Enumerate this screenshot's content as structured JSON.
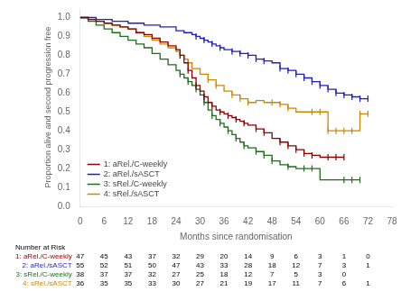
{
  "chart_data": {
    "type": "line",
    "xlabel": "Months since randomisation",
    "ylabel": "Proportion alive and second progression free",
    "xlim": [
      0,
      78
    ],
    "ylim": [
      0.0,
      1.05
    ],
    "xticks": [
      0,
      6,
      12,
      18,
      24,
      30,
      36,
      42,
      48,
      54,
      60,
      66,
      72,
      78
    ],
    "yticks": [
      {
        "value": 0.0,
        "label": "0.0"
      },
      0.1,
      0.2,
      0.3,
      0.4,
      0.5,
      0.6,
      0.7,
      0.8,
      0.9,
      {
        "value": 1.0,
        "label": "1.0"
      }
    ],
    "grid": false,
    "legend": "lower left",
    "series": [
      {
        "name": "1: aRel./C-weekly",
        "color": "#8B0000",
        "x": [
          0,
          2,
          4,
          6,
          8,
          10,
          12,
          14,
          16,
          18,
          20,
          22,
          24,
          25,
          26,
          27,
          28,
          29,
          30,
          31,
          32,
          33,
          34,
          35,
          36,
          37,
          38,
          39,
          40,
          41,
          42,
          44,
          46,
          48,
          50,
          52,
          54,
          56,
          58,
          60,
          61,
          62,
          64,
          66
        ],
        "values": [
          1.0,
          0.99,
          0.98,
          0.97,
          0.96,
          0.95,
          0.94,
          0.92,
          0.91,
          0.89,
          0.87,
          0.85,
          0.83,
          0.8,
          0.76,
          0.72,
          0.68,
          0.64,
          0.61,
          0.58,
          0.55,
          0.53,
          0.51,
          0.5,
          0.49,
          0.48,
          0.47,
          0.46,
          0.45,
          0.44,
          0.43,
          0.41,
          0.39,
          0.36,
          0.34,
          0.32,
          0.3,
          0.28,
          0.27,
          0.26,
          0.26,
          0.26,
          0.26,
          0.26
        ],
        "censor_x": [
          25,
          27,
          29,
          31,
          33,
          35,
          37,
          39,
          41,
          44,
          46,
          50,
          52,
          54,
          56,
          58,
          62,
          64,
          66
        ],
        "censor_y": [
          0.8,
          0.72,
          0.64,
          0.58,
          0.53,
          0.5,
          0.48,
          0.46,
          0.44,
          0.41,
          0.39,
          0.34,
          0.32,
          0.3,
          0.28,
          0.27,
          0.26,
          0.26,
          0.26
        ]
      },
      {
        "name": "2: aRel./sASCT",
        "color": "#1F1FBB",
        "x": [
          0,
          4,
          8,
          12,
          16,
          20,
          24,
          26,
          28,
          29,
          30,
          31,
          32,
          33,
          34,
          35,
          36,
          38,
          40,
          42,
          44,
          46,
          48,
          50,
          52,
          54,
          56,
          58,
          60,
          62,
          64,
          66,
          68,
          70,
          72
        ],
        "values": [
          1.0,
          0.99,
          0.98,
          0.97,
          0.96,
          0.95,
          0.93,
          0.92,
          0.91,
          0.9,
          0.89,
          0.88,
          0.87,
          0.86,
          0.85,
          0.84,
          0.83,
          0.82,
          0.81,
          0.8,
          0.78,
          0.77,
          0.76,
          0.73,
          0.72,
          0.7,
          0.68,
          0.66,
          0.64,
          0.62,
          0.6,
          0.59,
          0.58,
          0.57,
          0.57
        ],
        "censor_x": [
          29,
          31,
          33,
          35,
          38,
          40,
          42,
          44,
          46,
          50,
          52,
          54,
          56,
          58,
          60,
          62,
          64,
          66,
          68,
          70,
          72
        ],
        "censor_y": [
          0.9,
          0.88,
          0.86,
          0.84,
          0.82,
          0.81,
          0.8,
          0.78,
          0.77,
          0.73,
          0.72,
          0.7,
          0.68,
          0.66,
          0.64,
          0.62,
          0.6,
          0.59,
          0.58,
          0.57,
          0.57
        ]
      },
      {
        "name": "3: sRel./C-weekly",
        "color": "#1F6B1F",
        "x": [
          0,
          2,
          4,
          6,
          8,
          10,
          12,
          14,
          16,
          18,
          20,
          22,
          24,
          25,
          26,
          27,
          28,
          29,
          30,
          31,
          32,
          33,
          34,
          35,
          36,
          37,
          38,
          39,
          40,
          41,
          42,
          44,
          46,
          48,
          50,
          52,
          54,
          56,
          58,
          60,
          62,
          64,
          66,
          68,
          70
        ],
        "values": [
          1.0,
          0.98,
          0.96,
          0.94,
          0.92,
          0.9,
          0.88,
          0.86,
          0.84,
          0.81,
          0.78,
          0.75,
          0.72,
          0.7,
          0.68,
          0.66,
          0.64,
          0.62,
          0.59,
          0.55,
          0.51,
          0.48,
          0.46,
          0.44,
          0.42,
          0.4,
          0.38,
          0.36,
          0.34,
          0.32,
          0.31,
          0.29,
          0.27,
          0.24,
          0.22,
          0.21,
          0.2,
          0.2,
          0.2,
          0.14,
          0.14,
          0.14,
          0.14,
          0.14,
          0.14
        ],
        "censor_x": [
          25,
          27,
          29,
          31,
          33,
          35,
          37,
          39,
          41,
          44,
          46,
          48,
          52,
          56,
          58,
          66,
          68,
          70
        ],
        "censor_y": [
          0.7,
          0.66,
          0.62,
          0.55,
          0.48,
          0.44,
          0.4,
          0.36,
          0.32,
          0.29,
          0.27,
          0.24,
          0.21,
          0.2,
          0.2,
          0.14,
          0.14,
          0.14
        ]
      },
      {
        "name": "4: sRel./sASCT",
        "color": "#CC8800",
        "x": [
          0,
          2,
          4,
          6,
          8,
          10,
          12,
          14,
          16,
          18,
          20,
          22,
          24,
          25,
          26,
          27,
          28,
          30,
          32,
          34,
          36,
          38,
          40,
          42,
          44,
          46,
          48,
          50,
          52,
          54,
          56,
          58,
          60,
          62,
          64,
          66,
          68,
          70,
          72
        ],
        "values": [
          1.0,
          0.99,
          0.98,
          0.97,
          0.96,
          0.95,
          0.94,
          0.92,
          0.9,
          0.88,
          0.86,
          0.84,
          0.82,
          0.8,
          0.78,
          0.76,
          0.73,
          0.7,
          0.67,
          0.64,
          0.61,
          0.59,
          0.57,
          0.55,
          0.56,
          0.55,
          0.55,
          0.54,
          0.52,
          0.5,
          0.5,
          0.5,
          0.5,
          0.4,
          0.4,
          0.4,
          0.4,
          0.49,
          0.49
        ],
        "censor_x": [
          25,
          27,
          32,
          34,
          38,
          40,
          42,
          48,
          50,
          52,
          58,
          60,
          62,
          64,
          66,
          68,
          70,
          72
        ],
        "censor_y": [
          0.8,
          0.76,
          0.67,
          0.64,
          0.59,
          0.57,
          0.55,
          0.55,
          0.54,
          0.52,
          0.5,
          0.5,
          0.4,
          0.4,
          0.4,
          0.4,
          0.49,
          0.49
        ]
      }
    ],
    "risk_table": {
      "title": "Number at Risk",
      "x": [
        0,
        6,
        12,
        18,
        24,
        30,
        36,
        42,
        48,
        54,
        60,
        66,
        72
      ],
      "rows": [
        {
          "name": "1: aRel./C-weekly",
          "color": "#8B0000",
          "values": [
            47,
            45,
            43,
            37,
            32,
            29,
            20,
            14,
            9,
            6,
            3,
            1,
            0
          ]
        },
        {
          "name": "2: aRel./sASCT",
          "color": "#1F1FBB",
          "values": [
            55,
            52,
            51,
            50,
            47,
            43,
            33,
            28,
            18,
            12,
            7,
            3,
            1
          ]
        },
        {
          "name": "3: sRel./C-weekly",
          "color": "#1F6B1F",
          "values": [
            38,
            37,
            37,
            32,
            27,
            25,
            18,
            12,
            7,
            5,
            3,
            0,
            null
          ]
        },
        {
          "name": "4: sRel./sASCT",
          "color": "#CC8800",
          "values": [
            36,
            35,
            35,
            33,
            30,
            27,
            21,
            19,
            17,
            11,
            7,
            6,
            1
          ]
        }
      ]
    }
  }
}
